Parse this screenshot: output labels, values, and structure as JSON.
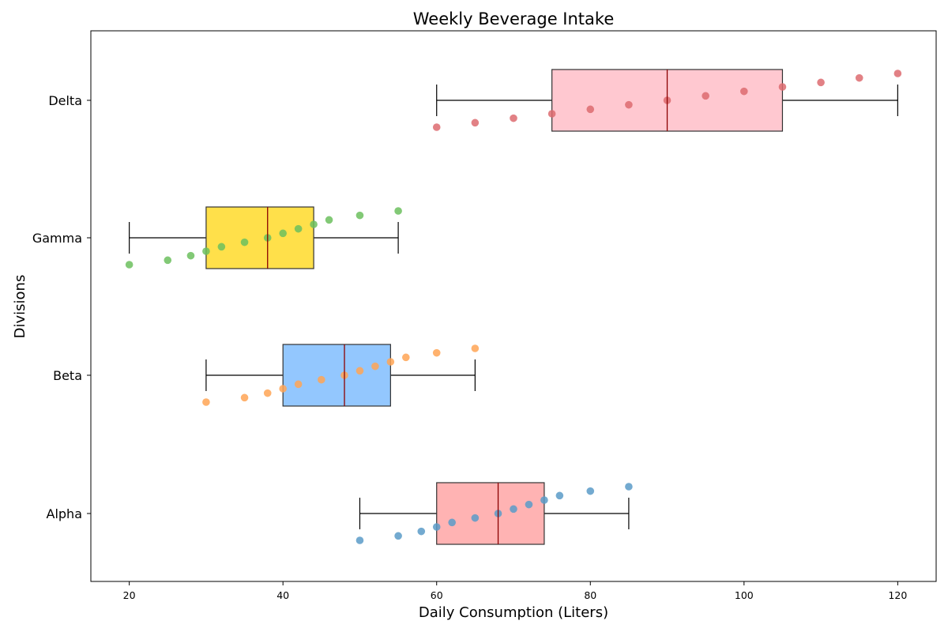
{
  "chart_data": {
    "type": "boxplot",
    "title": "Weekly Beverage Intake",
    "xlabel": "Daily Consumption (Liters)",
    "ylabel": "Divisions",
    "xlim": [
      15,
      125
    ],
    "xticks": [
      20,
      40,
      60,
      80,
      100,
      120
    ],
    "orientation": "horizontal",
    "grid": false,
    "categories": [
      "Alpha",
      "Beta",
      "Gamma",
      "Delta"
    ],
    "boxes": [
      {
        "name": "Alpha",
        "whisker_low": 50,
        "q1": 60,
        "median": 68,
        "q3": 74,
        "whisker_high": 85,
        "box_color": "#ffb3b3",
        "point_color": "#5b9bc8"
      },
      {
        "name": "Beta",
        "whisker_low": 30,
        "q1": 40,
        "median": 48,
        "q3": 54,
        "whisker_high": 65,
        "box_color": "#93c7fe",
        "point_color": "#ffa455"
      },
      {
        "name": "Gamma",
        "whisker_low": 20,
        "q1": 30,
        "median": 38,
        "q3": 44,
        "whisker_high": 55,
        "box_color": "#ffe04a",
        "point_color": "#6cbf5e"
      },
      {
        "name": "Delta",
        "whisker_low": 60,
        "q1": 75,
        "median": 90,
        "q3": 105,
        "whisker_high": 120,
        "box_color": "#ffc8d0",
        "point_color": "#dd6b70"
      }
    ],
    "points": [
      {
        "name": "Alpha",
        "values": [
          50,
          55,
          58,
          60,
          62,
          65,
          68,
          70,
          72,
          74,
          76,
          80,
          85
        ]
      },
      {
        "name": "Beta",
        "values": [
          30,
          35,
          38,
          40,
          42,
          45,
          48,
          50,
          52,
          54,
          56,
          60,
          65
        ]
      },
      {
        "name": "Gamma",
        "values": [
          20,
          25,
          28,
          30,
          32,
          35,
          38,
          40,
          42,
          44,
          46,
          50,
          55
        ]
      },
      {
        "name": "Delta",
        "values": [
          60,
          65,
          70,
          75,
          80,
          85,
          90,
          95,
          100,
          105,
          110,
          115,
          120
        ]
      }
    ],
    "median_color": "#8b0000"
  }
}
